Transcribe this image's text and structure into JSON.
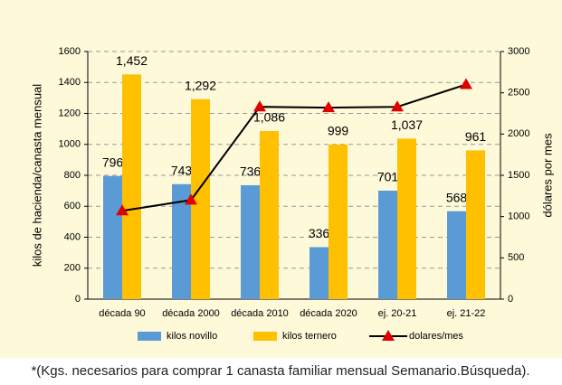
{
  "chart_data": {
    "type": "bar",
    "categories": [
      "década 90",
      "década 2000",
      "década 2010",
      "década 2020",
      "ej. 20-21",
      "ej. 21-22"
    ],
    "series": [
      {
        "name": "kilos novillo",
        "color": "#5b9bd5",
        "values": [
          796,
          743,
          736,
          336,
          701,
          568
        ]
      },
      {
        "name": "kilos ternero",
        "color": "#ffc000",
        "values": [
          1452,
          1292,
          1086,
          999,
          1037,
          961
        ],
        "value_labels": [
          "1,452",
          "1,292",
          "1,086",
          "999",
          "1,037",
          "961"
        ]
      },
      {
        "name": "dolares/mes",
        "type": "line",
        "axis": "y2",
        "color": "#000000",
        "marker_color": "#e00000",
        "values": [
          1070,
          1200,
          2330,
          2320,
          2330,
          2600
        ]
      }
    ],
    "ylabel": "kilos de  hacienda/canasta mensual",
    "y2label": "dólares por mes",
    "ylim": [
      0,
      1600
    ],
    "yticks": [
      0,
      200,
      400,
      600,
      800,
      1000,
      1200,
      1400,
      1600
    ],
    "y2lim": [
      0,
      3000
    ],
    "y2ticks": [
      0,
      500,
      1000,
      1500,
      2000,
      2500,
      3000
    ],
    "grid": true,
    "background": "#fdf9d9",
    "footnote": "*(Kgs. necesarios para comprar 1 canasta familiar mensual Semanario.Búsqueda)."
  }
}
